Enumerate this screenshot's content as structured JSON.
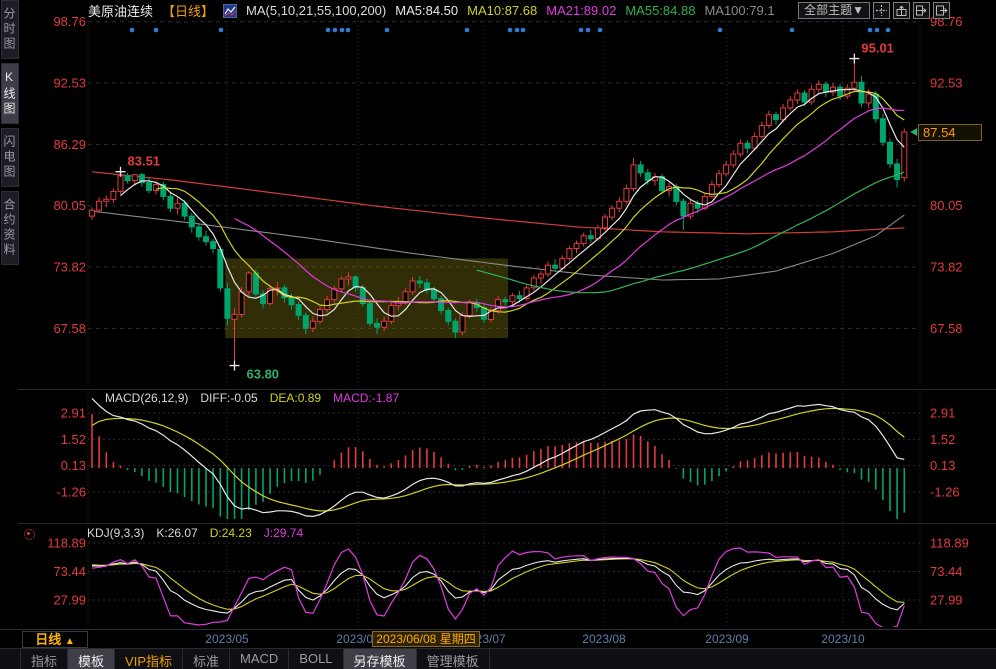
{
  "header": {
    "symbol": "美原油连续",
    "period": "【日线】",
    "ma_caption": "MA(5,10,21,55,100,200)",
    "ma5": "MA5:84.50",
    "ma10": "MA10:87.68",
    "ma21": "MA21:89.02",
    "ma55": "MA55:84.88",
    "ma100": "MA100:79.1",
    "theme_button": "全部主题▼"
  },
  "sidebar": {
    "items": [
      {
        "label": "分时图",
        "active": false
      },
      {
        "label": "K线图",
        "active": true
      },
      {
        "label": "闪电图",
        "active": false
      },
      {
        "label": "合约资料",
        "active": false
      }
    ]
  },
  "macd_panel": {
    "caption": "MACD(26,12,9)",
    "diff_label": "DIFF:-0.05",
    "dea_label": "DEA:0.89",
    "macd_label": "MACD:-1.87"
  },
  "kdj_panel": {
    "caption": "KDJ(9,3,3)",
    "k_label": "K:26.07",
    "d_label": "D:24.23",
    "j_label": "J:29.74"
  },
  "date_axis": {
    "ticks": [
      "2023/05",
      "2023/06",
      "2023/07",
      "2023/08",
      "2023/09",
      "2023/10"
    ],
    "crosshair_date": "2023/06/08 星期四",
    "period": "日线",
    "period_arrow": "▲"
  },
  "bottom_tabs": [
    {
      "label": "指标",
      "style": "normal"
    },
    {
      "label": "模板",
      "style": "selected"
    },
    {
      "label": "VIP指标",
      "style": "vip"
    },
    {
      "label": "标准",
      "style": "normal"
    },
    {
      "label": "MACD",
      "style": "normal"
    },
    {
      "label": "BOLL",
      "style": "normal"
    },
    {
      "label": "另存模板",
      "style": "selected"
    },
    {
      "label": "管理模板",
      "style": "normal"
    }
  ],
  "colors": {
    "up": "#e23b3b",
    "down": "#00a56e",
    "ma5": "#e8e8e8",
    "ma10": "#d0d020",
    "ma21": "#e03ce0",
    "ma55": "#2fb350",
    "ma100": "#8a8a8a",
    "ma200": "#d23c3c",
    "diff_line": "#e8e8e8",
    "dea_line": "#d0d020",
    "k_line": "#e8e8e8",
    "d_line": "#d0d020",
    "j_line": "#e03ce0",
    "axis_red": "#e23b3b",
    "accent_orange": "#ffb400",
    "event_dot": "#2b7fd6",
    "annotation_low": "#2fae6e",
    "grid": "#2c2c32",
    "selection_box": "rgba(150,140,22,0.32)"
  },
  "chart_data": {
    "type": "candlestick",
    "title": "美原油连续 日线 (WTI crude continuous, daily)",
    "legend": [
      "MA5",
      "MA10",
      "MA21",
      "MA55",
      "MA100",
      "MA200",
      "DIFF",
      "DEA",
      "MACD",
      "K",
      "D",
      "J"
    ],
    "price_axis_left": [
      98.76,
      92.53,
      86.29,
      80.05,
      73.82,
      67.58
    ],
    "price_axis_right": [
      98.76,
      92.53,
      80.05,
      73.82,
      67.58
    ],
    "current_price": "87.54",
    "macd_axis": [
      2.91,
      1.52,
      0.13,
      -1.26
    ],
    "kdj_axis": [
      118.89,
      73.44,
      27.99
    ],
    "time_ticks": [
      "2023/05",
      "2023/06",
      "2023/07",
      "2023/08",
      "2023/09",
      "2023/10"
    ],
    "candles_ohlc": [
      [
        79.0,
        79.9,
        78.6,
        79.6
      ],
      [
        79.6,
        80.9,
        79.3,
        80.5
      ],
      [
        80.5,
        81.1,
        79.9,
        80.7
      ],
      [
        80.7,
        81.8,
        80.3,
        81.5
      ],
      [
        81.5,
        83.51,
        81.2,
        83.1
      ],
      [
        83.1,
        83.4,
        82.3,
        82.6
      ],
      [
        82.6,
        83.3,
        82.1,
        83.2
      ],
      [
        83.2,
        83.4,
        82.0,
        82.4
      ],
      [
        82.4,
        82.9,
        81.3,
        81.6
      ],
      [
        81.6,
        82.6,
        81.2,
        82.2
      ],
      [
        82.2,
        82.5,
        80.6,
        81.0
      ],
      [
        81.0,
        81.4,
        79.4,
        79.8
      ],
      [
        79.8,
        80.8,
        79.2,
        80.3
      ],
      [
        80.3,
        80.6,
        78.6,
        79.0
      ],
      [
        79.0,
        79.3,
        77.3,
        77.9
      ],
      [
        77.9,
        78.3,
        76.5,
        76.9
      ],
      [
        76.9,
        77.5,
        76.0,
        76.4
      ],
      [
        76.4,
        76.7,
        75.2,
        75.7
      ],
      [
        75.6,
        75.9,
        71.3,
        71.7
      ],
      [
        71.6,
        72.2,
        67.9,
        68.6
      ],
      [
        68.5,
        69.6,
        63.8,
        69.0
      ],
      [
        69.0,
        71.8,
        68.7,
        71.3
      ],
      [
        71.3,
        73.4,
        70.9,
        73.2
      ],
      [
        73.2,
        73.6,
        70.8,
        71.1
      ],
      [
        71.1,
        71.5,
        69.6,
        70.1
      ],
      [
        70.1,
        72.0,
        69.9,
        71.6
      ],
      [
        71.6,
        72.3,
        70.9,
        71.7
      ],
      [
        71.7,
        72.0,
        70.2,
        70.7
      ],
      [
        70.7,
        71.1,
        69.5,
        70.0
      ],
      [
        70.0,
        70.3,
        68.4,
        68.9
      ],
      [
        68.9,
        69.2,
        67.0,
        67.6
      ],
      [
        67.6,
        68.8,
        67.2,
        68.3
      ],
      [
        68.3,
        69.9,
        68.0,
        69.5
      ],
      [
        69.5,
        70.9,
        69.2,
        70.5
      ],
      [
        70.5,
        71.9,
        70.2,
        71.6
      ],
      [
        71.6,
        72.9,
        71.3,
        72.6
      ],
      [
        72.6,
        73.3,
        72.0,
        72.8
      ],
      [
        72.8,
        73.0,
        71.3,
        71.7
      ],
      [
        71.7,
        72.0,
        69.8,
        70.1
      ],
      [
        70.1,
        70.4,
        67.8,
        68.1
      ],
      [
        68.1,
        68.6,
        67.0,
        67.7
      ],
      [
        67.7,
        68.8,
        67.3,
        68.3
      ],
      [
        68.3,
        70.2,
        68.0,
        69.9
      ],
      [
        69.9,
        70.8,
        69.4,
        70.3
      ],
      [
        70.3,
        71.7,
        70.0,
        71.3
      ],
      [
        71.3,
        72.8,
        71.0,
        72.4
      ],
      [
        72.4,
        72.9,
        71.7,
        72.2
      ],
      [
        72.2,
        72.6,
        71.1,
        71.5
      ],
      [
        71.5,
        71.8,
        70.2,
        70.6
      ],
      [
        70.6,
        70.9,
        69.0,
        69.4
      ],
      [
        69.4,
        69.7,
        67.9,
        68.3
      ],
      [
        68.3,
        68.6,
        66.6,
        67.2
      ],
      [
        67.2,
        69.2,
        66.9,
        68.9
      ],
      [
        68.9,
        70.5,
        68.6,
        70.2
      ],
      [
        70.2,
        70.6,
        69.3,
        69.7
      ],
      [
        69.7,
        70.0,
        68.1,
        68.5
      ],
      [
        68.5,
        69.7,
        68.2,
        69.4
      ],
      [
        69.4,
        70.9,
        69.1,
        70.5
      ],
      [
        70.5,
        70.8,
        69.9,
        70.3
      ],
      [
        70.3,
        71.2,
        70.0,
        70.9
      ],
      [
        70.9,
        71.4,
        70.2,
        70.6
      ],
      [
        70.6,
        72.0,
        70.4,
        71.7
      ],
      [
        71.7,
        73.0,
        71.4,
        72.7
      ],
      [
        72.7,
        73.4,
        72.1,
        73.1
      ],
      [
        73.1,
        74.4,
        72.8,
        74.0
      ],
      [
        74.0,
        74.6,
        73.3,
        73.7
      ],
      [
        73.7,
        75.0,
        73.5,
        74.7
      ],
      [
        74.7,
        76.0,
        74.4,
        75.7
      ],
      [
        75.7,
        76.5,
        75.2,
        76.2
      ],
      [
        76.2,
        77.3,
        75.9,
        77.0
      ],
      [
        77.0,
        77.6,
        76.3,
        76.7
      ],
      [
        76.7,
        78.1,
        76.5,
        77.8
      ],
      [
        77.8,
        79.2,
        77.5,
        78.9
      ],
      [
        78.9,
        80.1,
        78.6,
        79.8
      ],
      [
        79.8,
        80.9,
        79.4,
        80.5
      ],
      [
        80.5,
        82.2,
        80.2,
        81.8
      ],
      [
        81.8,
        84.9,
        81.5,
        84.2
      ],
      [
        84.2,
        84.6,
        83.0,
        83.4
      ],
      [
        83.4,
        83.8,
        82.2,
        82.6
      ],
      [
        82.6,
        83.4,
        82.1,
        83.0
      ],
      [
        83.0,
        83.3,
        81.2,
        81.6
      ],
      [
        81.6,
        82.4,
        81.0,
        82.0
      ],
      [
        82.0,
        82.3,
        80.1,
        80.5
      ],
      [
        80.5,
        80.8,
        77.6,
        79.0
      ],
      [
        79.0,
        80.7,
        78.7,
        80.3
      ],
      [
        80.3,
        80.6,
        79.3,
        79.8
      ],
      [
        79.8,
        81.4,
        79.6,
        81.0
      ],
      [
        81.0,
        82.6,
        80.8,
        82.2
      ],
      [
        82.2,
        83.7,
        81.9,
        83.3
      ],
      [
        83.3,
        84.6,
        83.0,
        84.2
      ],
      [
        84.2,
        85.7,
        83.9,
        85.3
      ],
      [
        85.3,
        86.8,
        85.0,
        86.4
      ],
      [
        86.4,
        86.7,
        85.4,
        85.9
      ],
      [
        85.9,
        87.5,
        85.6,
        87.1
      ],
      [
        87.1,
        88.6,
        86.8,
        88.2
      ],
      [
        88.2,
        89.7,
        87.9,
        89.3
      ],
      [
        89.3,
        89.6,
        88.3,
        88.8
      ],
      [
        88.8,
        90.4,
        88.5,
        90.0
      ],
      [
        90.0,
        91.2,
        89.7,
        90.8
      ],
      [
        90.8,
        91.9,
        90.4,
        91.5
      ],
      [
        91.5,
        91.8,
        90.2,
        90.6
      ],
      [
        90.6,
        92.3,
        90.3,
        91.9
      ],
      [
        91.9,
        92.8,
        91.4,
        92.4
      ],
      [
        92.4,
        92.7,
        91.1,
        91.6
      ],
      [
        91.6,
        92.5,
        91.2,
        92.1
      ],
      [
        92.1,
        92.4,
        90.8,
        91.2
      ],
      [
        91.2,
        92.4,
        90.9,
        92.0
      ],
      [
        92.0,
        95.01,
        91.6,
        92.6
      ],
      [
        92.6,
        93.2,
        90.1,
        90.5
      ],
      [
        90.5,
        91.9,
        90.0,
        91.4
      ],
      [
        91.4,
        91.7,
        88.5,
        88.9
      ],
      [
        88.9,
        89.4,
        86.1,
        86.5
      ],
      [
        86.5,
        86.9,
        83.9,
        84.3
      ],
      [
        84.3,
        84.8,
        81.9,
        82.7
      ],
      [
        82.9,
        87.9,
        82.5,
        87.54
      ]
    ],
    "ma_windows": [
      5,
      10,
      21,
      55
    ],
    "ma100_points": [
      [
        0,
        79.5
      ],
      [
        15,
        78.2
      ],
      [
        30,
        76.8
      ],
      [
        45,
        75.2
      ],
      [
        58,
        74.0
      ],
      [
        70,
        73.0
      ],
      [
        80,
        72.5
      ],
      [
        88,
        72.6
      ],
      [
        96,
        73.4
      ],
      [
        104,
        75.2
      ],
      [
        110,
        77.0
      ],
      [
        114,
        79.1
      ]
    ],
    "ma200_points": [
      [
        0,
        83.5
      ],
      [
        12,
        82.6
      ],
      [
        25,
        81.4
      ],
      [
        40,
        80.0
      ],
      [
        55,
        78.8
      ],
      [
        68,
        77.9
      ],
      [
        80,
        77.4
      ],
      [
        92,
        77.2
      ],
      [
        104,
        77.4
      ],
      [
        114,
        77.8
      ]
    ],
    "annotations": [
      {
        "text": "83.51",
        "index": 4,
        "price": 83.51,
        "type": "high"
      },
      {
        "text": "63.80",
        "index": 20,
        "price": 63.8,
        "type": "low"
      },
      {
        "text": "95.01",
        "index": 107,
        "price": 95.01,
        "type": "high"
      }
    ],
    "selection_box": {
      "start_index": 18.7,
      "end_index": 58.4,
      "top_price": 74.7,
      "bottom_price": 66.6
    },
    "event_dots_x": [
      132,
      156,
      221,
      328,
      335,
      342,
      348,
      387,
      467,
      510,
      517,
      523,
      581,
      588,
      600,
      720,
      792,
      870,
      877,
      888
    ]
  }
}
